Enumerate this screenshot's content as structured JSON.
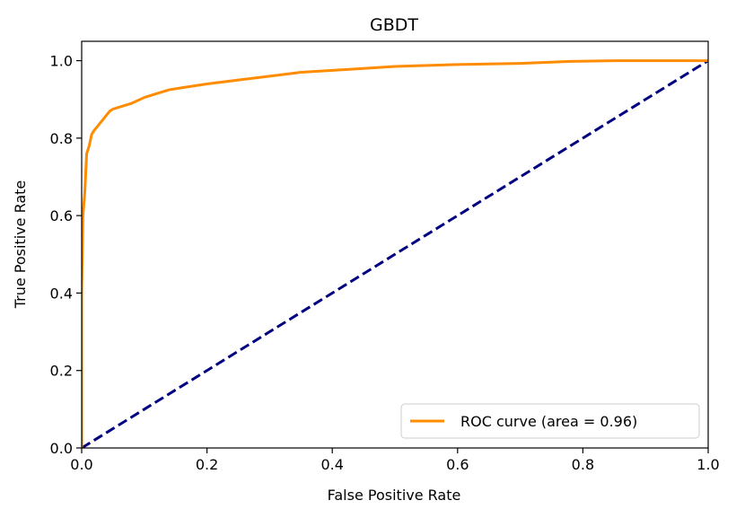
{
  "chart_data": {
    "type": "line",
    "title": "GBDT",
    "xlabel": "False Positive Rate",
    "ylabel": "True Positive Rate",
    "xlim": [
      0.0,
      1.0
    ],
    "ylim": [
      0.0,
      1.05
    ],
    "xticks": [
      0.0,
      0.2,
      0.4,
      0.6,
      0.8,
      1.0
    ],
    "xtick_labels": [
      "0.0",
      "0.2",
      "0.4",
      "0.6",
      "0.8",
      "1.0"
    ],
    "yticks": [
      0.0,
      0.2,
      0.4,
      0.6,
      0.8,
      1.0
    ],
    "ytick_labels": [
      "0.0",
      "0.2",
      "0.4",
      "0.6",
      "0.8",
      "1.0"
    ],
    "grid": false,
    "legend_position": "lower-right",
    "series": [
      {
        "name": "ROC curve (area = 0.96)",
        "color": "#ff8c00",
        "line_style": "solid",
        "x": [
          0.0,
          0.0,
          0.002,
          0.005,
          0.008,
          0.012,
          0.016,
          0.02,
          0.025,
          0.03,
          0.035,
          0.04,
          0.045,
          0.05,
          0.06,
          0.08,
          0.1,
          0.12,
          0.14,
          0.16,
          0.18,
          0.2,
          0.25,
          0.3,
          0.35,
          0.4,
          0.45,
          0.5,
          0.6,
          0.7,
          0.78,
          0.85,
          0.9,
          1.0
        ],
        "y": [
          0.0,
          0.4,
          0.6,
          0.66,
          0.76,
          0.78,
          0.81,
          0.82,
          0.83,
          0.84,
          0.85,
          0.86,
          0.87,
          0.875,
          0.88,
          0.89,
          0.905,
          0.915,
          0.925,
          0.93,
          0.935,
          0.94,
          0.95,
          0.96,
          0.97,
          0.975,
          0.98,
          0.985,
          0.99,
          0.993,
          0.998,
          1.0,
          1.0,
          1.0
        ]
      },
      {
        "name": "",
        "color": "#000080",
        "line_style": "dashed",
        "x": [
          0.0,
          1.0
        ],
        "y": [
          0.0,
          1.0
        ]
      }
    ]
  }
}
